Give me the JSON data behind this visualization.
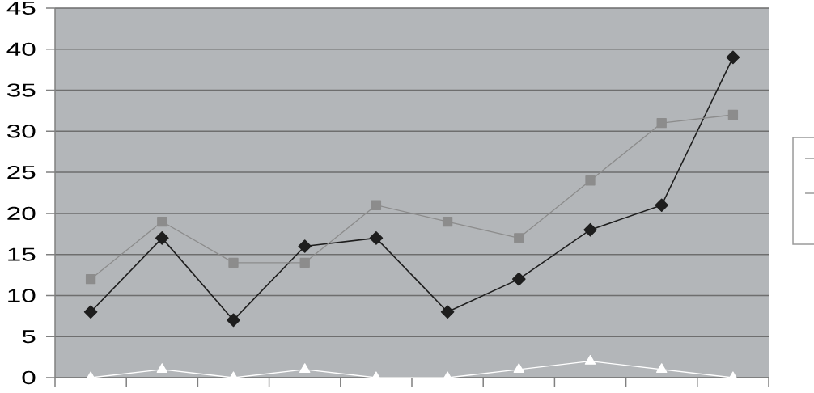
{
  "chart_data": {
    "type": "line",
    "categories": [
      null,
      null,
      null,
      null,
      null,
      null,
      null,
      null,
      null,
      null
    ],
    "ylim": [
      0,
      45
    ],
    "yticks": [
      0,
      5,
      10,
      15,
      20,
      25,
      30,
      35,
      40,
      45
    ],
    "grid": "y",
    "tick_labels": "y",
    "line_style": "solid",
    "series": [
      {
        "color": "#1e1e1e",
        "marker": "diamond",
        "values": [
          8,
          17,
          7,
          16,
          17,
          8,
          12,
          18,
          21,
          39
        ]
      },
      {
        "color": "#8c8c8c",
        "marker": "square",
        "values": [
          12,
          19,
          14,
          14,
          21,
          19,
          17,
          24,
          31,
          32
        ]
      },
      {
        "color": "#ffffff",
        "marker": "triangle",
        "values": [
          0,
          1,
          0,
          1,
          0,
          0,
          1,
          2,
          1,
          0
        ]
      }
    ]
  }
}
